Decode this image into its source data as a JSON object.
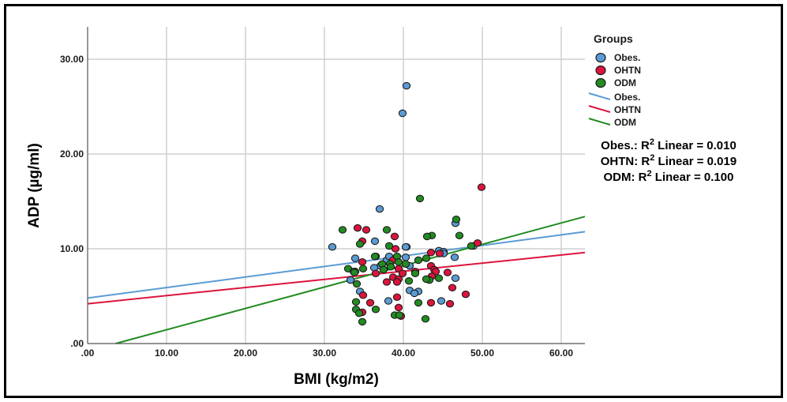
{
  "chart_data": {
    "type": "scatter",
    "title": "",
    "xlabel": "BMI (kg/m2)",
    "ylabel": "ADP (µg/ml)",
    "xlim": [
      0,
      63
    ],
    "ylim": [
      0,
      33
    ],
    "x_ticks": [
      0,
      10,
      20,
      30,
      40,
      50,
      60
    ],
    "x_tick_labels": [
      ".00",
      "10.00",
      "20.00",
      "30.00",
      "40.00",
      "50.00",
      "60.00"
    ],
    "y_ticks": [
      0,
      10,
      20,
      30
    ],
    "y_tick_labels": [
      ".00",
      "10.00",
      "20.00",
      "30.00"
    ],
    "grid": true,
    "legend": {
      "title": "Groups",
      "placement": "right",
      "markers": [
        "Obes.",
        "OHTN",
        "ODM"
      ],
      "lines": [
        "Obes.",
        "OHTN",
        "ODM"
      ]
    },
    "annotations": [
      {
        "group": "Obes.",
        "prefix": "Obes.: R",
        "sup": "2",
        "suffix": " Linear = 0.010"
      },
      {
        "group": "OHTN",
        "prefix": "OHTN: R",
        "sup": "2",
        "suffix": " Linear = 0.019"
      },
      {
        "group": "ODM",
        "prefix": "ODM: R",
        "sup": "2",
        "suffix": " Linear = 0.100"
      }
    ],
    "series": [
      {
        "name": "Obes.",
        "color": "#5b9bd5",
        "fit_line": {
          "x": [
            0,
            63
          ],
          "y": [
            4.8,
            11.8
          ]
        },
        "points": [
          [
            40.4,
            27.2
          ],
          [
            39.9,
            24.3
          ],
          [
            37.0,
            14.2
          ],
          [
            31.0,
            10.2
          ],
          [
            36.4,
            10.8
          ],
          [
            40.4,
            10.2
          ],
          [
            44.5,
            9.8
          ],
          [
            36.5,
            9.2
          ],
          [
            33.9,
            7.6
          ],
          [
            33.3,
            6.7
          ],
          [
            34.5,
            5.5
          ],
          [
            38.1,
            4.5
          ],
          [
            37.9,
            8.8
          ],
          [
            37.1,
            8.2
          ],
          [
            38.2,
            9.2
          ],
          [
            40.3,
            9.1
          ],
          [
            36.3,
            8.0
          ],
          [
            40.3,
            10.2
          ],
          [
            45.1,
            9.7
          ],
          [
            48.9,
            10.3
          ],
          [
            45.1,
            9.5
          ],
          [
            46.5,
            9.1
          ],
          [
            41.9,
            5.5
          ],
          [
            40.8,
            5.6
          ],
          [
            41.4,
            5.3
          ],
          [
            44.8,
            4.5
          ],
          [
            46.6,
            6.9
          ],
          [
            46.6,
            12.7
          ],
          [
            40.8,
            8.2
          ],
          [
            33.9,
            9.0
          ]
        ]
      },
      {
        "name": "OHTN",
        "color": "#dc143c",
        "fit_line": {
          "x": [
            0,
            63
          ],
          "y": [
            4.2,
            9.6
          ]
        },
        "points": [
          [
            49.9,
            16.5
          ],
          [
            34.2,
            12.2
          ],
          [
            35.3,
            12.0
          ],
          [
            38.9,
            11.3
          ],
          [
            39.0,
            10.0
          ],
          [
            34.8,
            10.8
          ],
          [
            38.7,
            8.8
          ],
          [
            43.5,
            9.6
          ],
          [
            49.4,
            10.6
          ],
          [
            39.4,
            7.9
          ],
          [
            38.7,
            7.0
          ],
          [
            39.9,
            7.4
          ],
          [
            43.5,
            8.2
          ],
          [
            41.5,
            7.6
          ],
          [
            43.9,
            7.8
          ],
          [
            44.1,
            7.6
          ],
          [
            45.6,
            7.5
          ],
          [
            44.6,
            9.5
          ],
          [
            46.2,
            5.9
          ],
          [
            47.9,
            5.2
          ],
          [
            39.4,
            6.8
          ],
          [
            39.2,
            6.5
          ],
          [
            34.8,
            8.6
          ],
          [
            35.8,
            4.3
          ],
          [
            39.2,
            4.9
          ],
          [
            39.4,
            3.8
          ],
          [
            39.7,
            2.9
          ],
          [
            43.5,
            4.3
          ],
          [
            45.9,
            4.2
          ],
          [
            34.9,
            5.1
          ],
          [
            43.6,
            7.1
          ],
          [
            36.5,
            7.4
          ],
          [
            37.9,
            6.5
          ],
          [
            34.8,
            3.3
          ]
        ]
      },
      {
        "name": "ODM",
        "color": "#228b22",
        "fit_line": {
          "x": [
            0,
            63
          ],
          "y": [
            -0.8,
            13.4
          ]
        },
        "points": [
          [
            42.1,
            15.3
          ],
          [
            46.7,
            13.1
          ],
          [
            32.3,
            12.0
          ],
          [
            37.9,
            12.0
          ],
          [
            43.6,
            11.4
          ],
          [
            43.0,
            11.3
          ],
          [
            47.1,
            11.4
          ],
          [
            34.5,
            10.5
          ],
          [
            38.2,
            10.3
          ],
          [
            48.6,
            10.3
          ],
          [
            39.2,
            9.2
          ],
          [
            36.4,
            9.2
          ],
          [
            42.9,
            9.0
          ],
          [
            33.0,
            7.9
          ],
          [
            33.7,
            7.6
          ],
          [
            34.9,
            7.9
          ],
          [
            33.8,
            7.5
          ],
          [
            39.4,
            8.6
          ],
          [
            41.9,
            8.8
          ],
          [
            40.3,
            8.4
          ],
          [
            38.3,
            8.4
          ],
          [
            37.3,
            8.4
          ],
          [
            38.4,
            8.1
          ],
          [
            41.5,
            7.4
          ],
          [
            43.3,
            6.7
          ],
          [
            40.7,
            6.6
          ],
          [
            42.9,
            6.8
          ],
          [
            44.5,
            6.9
          ],
          [
            34.1,
            6.3
          ],
          [
            34.0,
            4.4
          ],
          [
            41.9,
            4.3
          ],
          [
            34.0,
            3.6
          ],
          [
            34.4,
            3.2
          ],
          [
            38.9,
            3.0
          ],
          [
            39.5,
            3.0
          ],
          [
            42.8,
            2.6
          ],
          [
            34.8,
            2.3
          ],
          [
            36.5,
            3.6
          ],
          [
            37.5,
            7.8
          ]
        ]
      }
    ]
  }
}
